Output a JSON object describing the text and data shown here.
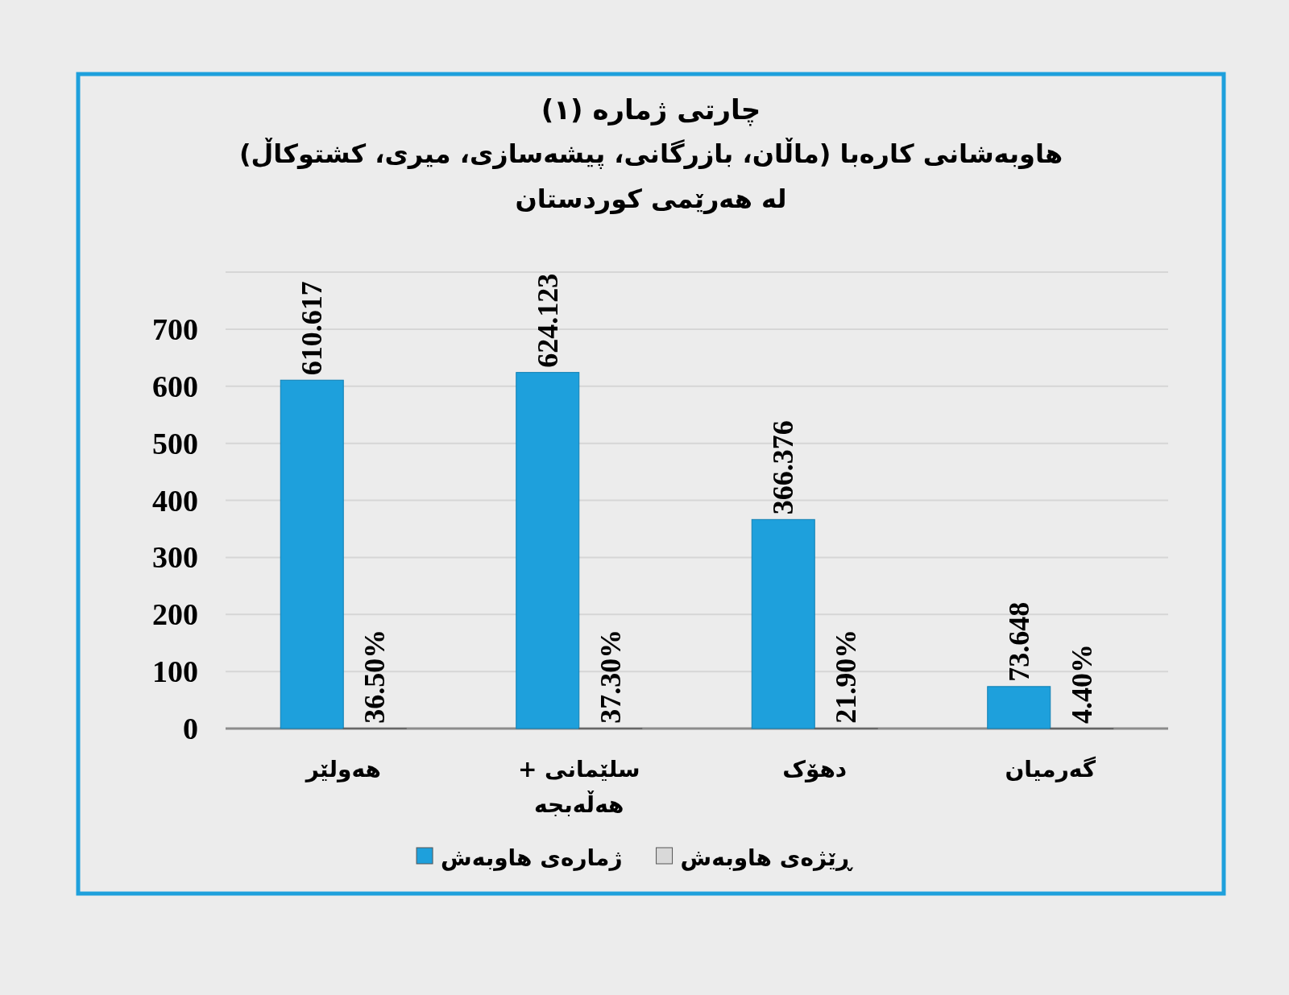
{
  "chart_data": {
    "type": "bar",
    "title": "چارتی ژمارە (١)",
    "subtitle": "هاوبەشانی کارەبا (ماڵان، بازرگانی، پیشەسازی، میری، کشتوکاڵ)\nلە هەرێمی کوردستان",
    "categories": [
      "هەولێر",
      "سلێمانی + هەڵەبجە",
      "دهۆک",
      "گەرمیان"
    ],
    "series": [
      {
        "name": "ژمارەی هاوبەش",
        "color": "#1ea0dc",
        "values": [
          610.617,
          624.123,
          366.376,
          73.648
        ],
        "value_labels": [
          "610.617",
          "624.123",
          "366.376",
          "73.648"
        ]
      },
      {
        "name": "ڕێژەی هاوبەش",
        "color": "#d9d9d9",
        "values": [
          0.365,
          0.373,
          0.219,
          0.044
        ],
        "value_labels": [
          "36.50%",
          "37.30%",
          "21.90%",
          "4.40%"
        ]
      }
    ],
    "ylim": [
      0,
      800
    ],
    "yticks": [
      0,
      100,
      200,
      300,
      400,
      500,
      600,
      700,
      {
        "value": 800,
        "label": null
      }
    ],
    "grid": "y",
    "legend": "bottom"
  }
}
